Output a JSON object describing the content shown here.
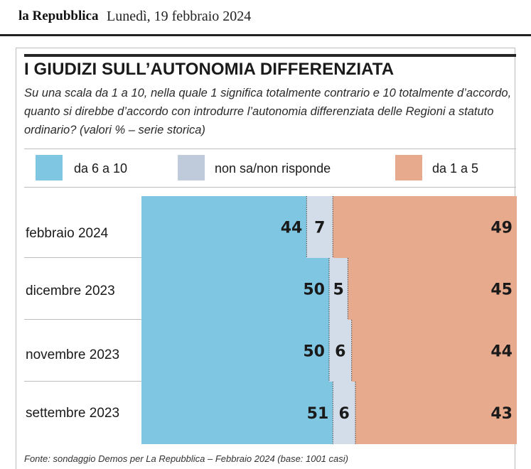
{
  "header": {
    "logo_text": "la Repubblica",
    "date": "Lunedì, 19 febbraio 2024"
  },
  "title": "I GIUDIZI SULL’AUTONOMIA DIFFERENZIATA",
  "subtitle": "Su una scala da 1 a 10, nella quale 1 significa totalmente contrario e 10 totalmente d’accordo, quanto si direbbe d’accordo con introdurre l’autonomia differenziata delle Regioni a statuto ordinario? (valori %  – serie storica)",
  "legend": [
    {
      "label": "da 6 a 10",
      "color": "#7fc6e2"
    },
    {
      "label": "non sa/non risponde",
      "color": "#bfcbdb"
    },
    {
      "label": "da 1 a 5",
      "color": "#e8aa8d"
    }
  ],
  "source": "Fonte: sondaggio Demos per La Repubblica – Febbraio 2024 (base: 1001 casi)",
  "chart_data": {
    "type": "bar",
    "stacked": true,
    "orientation": "horizontal",
    "unit": "%",
    "categories": [
      "febbraio 2024",
      "dicembre 2023",
      "novembre 2023",
      "settembre 2023"
    ],
    "series": [
      {
        "name": "da 6 a 10",
        "color": "#7fc6e2",
        "values": [
          44,
          50,
          50,
          51
        ]
      },
      {
        "name": "non sa/non risponde",
        "color": "#d3dde9",
        "values": [
          7,
          5,
          6,
          6
        ]
      },
      {
        "name": "da 1 a 5",
        "color": "#e8aa8d",
        "values": [
          49,
          45,
          44,
          43
        ]
      }
    ],
    "xlim": [
      0,
      100
    ]
  }
}
